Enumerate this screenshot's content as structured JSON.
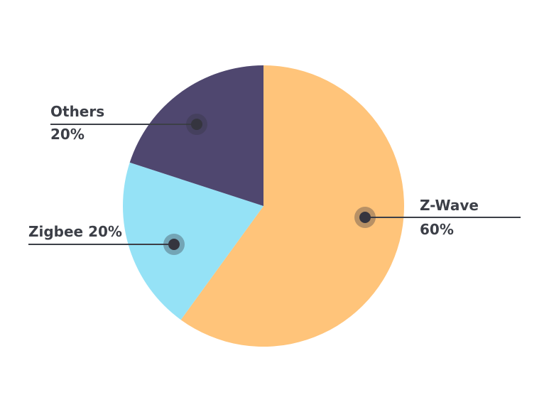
{
  "chart_data": {
    "type": "pie",
    "title": "",
    "slices": [
      {
        "name": "Z-Wave",
        "value": 60,
        "color": "#ffc47a",
        "label_lines": [
          "Z-Wave",
          "60%"
        ]
      },
      {
        "name": "Zigbee",
        "value": 20,
        "color": "#95e2f6",
        "label_lines": [
          "Zigbee 20%"
        ]
      },
      {
        "name": "Others",
        "value": 20,
        "color": "#4f476f",
        "label_lines": [
          "Others",
          "20%"
        ]
      }
    ],
    "start_angle": "12 o'clock",
    "direction": "clockwise",
    "legend": "none",
    "marker_color": "#35353f"
  }
}
